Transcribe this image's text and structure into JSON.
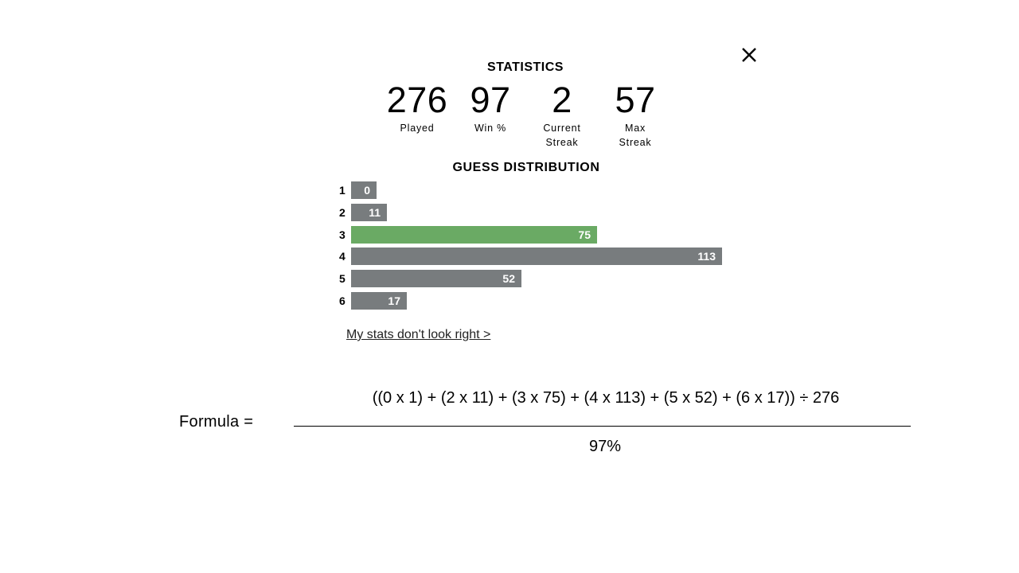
{
  "modal": {
    "close_icon": "close-icon",
    "title": "STATISTICS",
    "stats": [
      {
        "value": "276",
        "label": "Played"
      },
      {
        "value": "97",
        "label": "Win %"
      },
      {
        "value": "2",
        "label": "Current Streak"
      },
      {
        "value": "57",
        "label": "Max Streak"
      }
    ],
    "distribution_title": "GUESS DISTRIBUTION",
    "distribution": [
      {
        "guess": "1",
        "count": 0
      },
      {
        "guess": "2",
        "count": 11
      },
      {
        "guess": "3",
        "count": 75
      },
      {
        "guess": "4",
        "count": 113
      },
      {
        "guess": "5",
        "count": 52
      },
      {
        "guess": "6",
        "count": 17
      }
    ],
    "highlight_guess": "3",
    "colors": {
      "bar": "#787c7e",
      "highlight": "#6aaa64"
    },
    "link_text": "My stats don't look right >"
  },
  "formula": {
    "label": "Formula  =",
    "numerator": "((0 x 1) + (2 x 11) + (3 x 75) + (4 x 113) + (5 x 52) + (6 x 17)) ÷ 276",
    "denominator": "97%"
  }
}
